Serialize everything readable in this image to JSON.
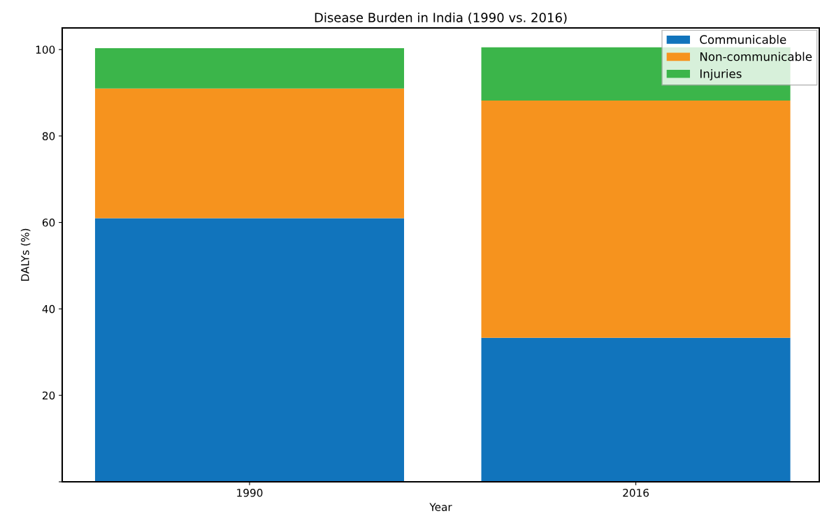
{
  "chart_data": {
    "type": "bar",
    "title": "Disease Burden in India (1990 vs. 2016)",
    "xlabel": "Year",
    "ylabel": "DALYs (%)",
    "categories": [
      "1990",
      "2016"
    ],
    "stacked": true,
    "series": [
      {
        "name": "Communicable",
        "color": "#1174bc",
        "values": [
          61,
          33.3
        ]
      },
      {
        "name": "Non-communicable",
        "color": "#f6931e",
        "values": [
          30,
          54.9
        ]
      },
      {
        "name": "Injuries",
        "color": "#3bb54a",
        "values": [
          9.3,
          12.3
        ]
      }
    ],
    "ylim": [
      0,
      105
    ],
    "yticks": [
      {
        "value": 0,
        "label": null
      },
      20,
      40,
      60,
      80,
      100
    ],
    "grid": false,
    "legend": "top right"
  }
}
